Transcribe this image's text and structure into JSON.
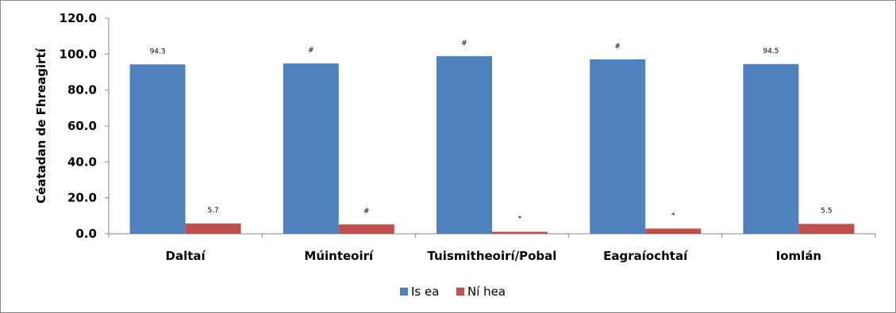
{
  "chart_data": {
    "type": "bar",
    "categories": [
      "Daltaí",
      "Múinteoirí",
      "Tuismitheoirí/Pobal",
      "Eagraíochtaí",
      "Iomlán"
    ],
    "series": [
      {
        "name": "Is ea",
        "color": "#4F81BD",
        "values": [
          94.3,
          94.8,
          98.9,
          97.1,
          94.5
        ],
        "labels": [
          "94.3",
          "#",
          "#",
          "#",
          "94.5"
        ]
      },
      {
        "name": "Ní hea",
        "color": "#C0504D",
        "values": [
          5.7,
          5.2,
          1.1,
          2.9,
          5.5
        ],
        "labels": [
          "5.7",
          "#",
          "*",
          "*",
          "5.5"
        ]
      }
    ],
    "ylabel": "Céatadan de Fhreagirtí",
    "xlabel": "",
    "ylim": [
      0,
      120
    ],
    "yticks": [
      "0.0",
      "20.0",
      "40.0",
      "60.0",
      "80.0",
      "100.0",
      "120.0"
    ],
    "grid": false,
    "legend": "bottom"
  }
}
